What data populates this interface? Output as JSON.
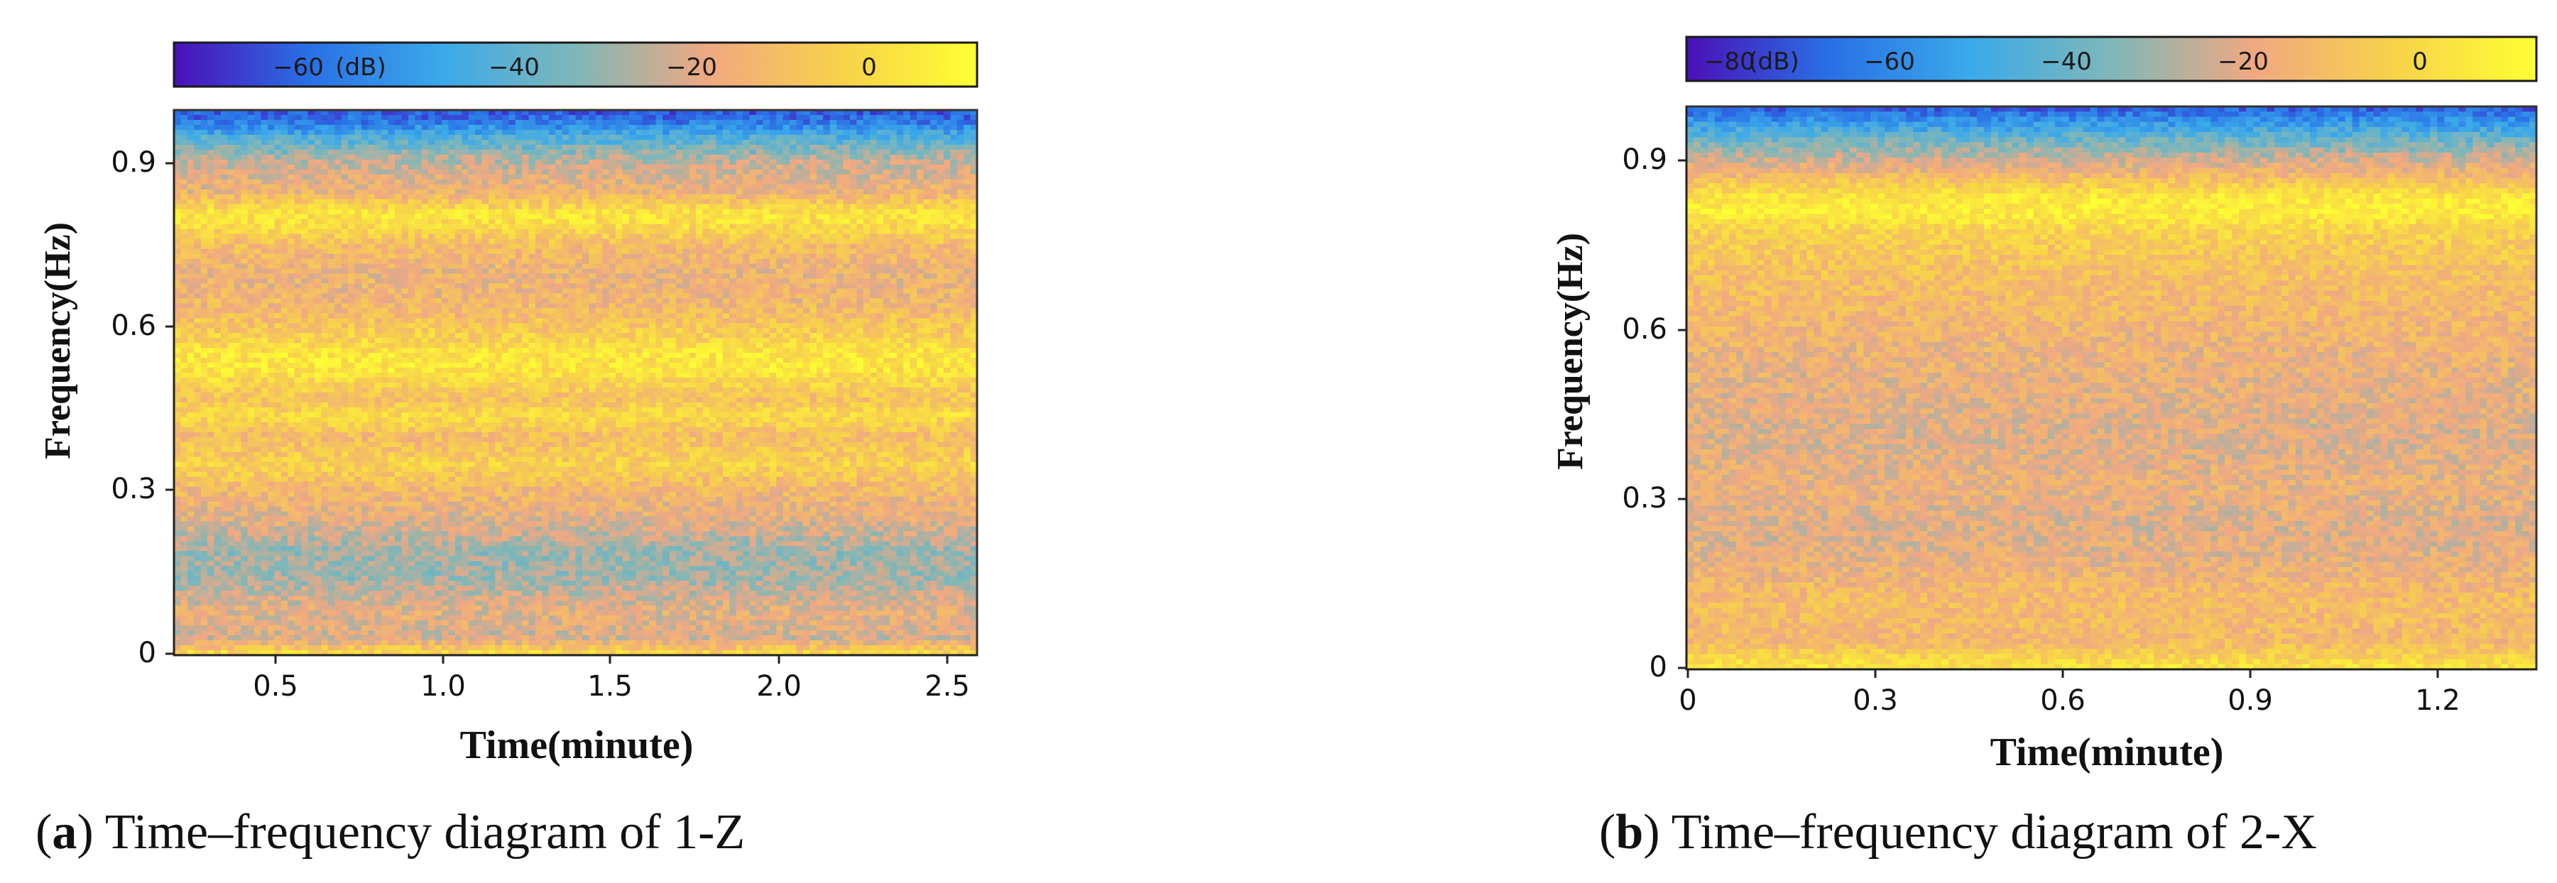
{
  "panels": [
    {
      "id": "a",
      "caption_letter": "a",
      "caption_text": "Time–frequency diagram of 1-Z",
      "colorbar": {
        "unit": "(dB)",
        "range": [
          -75,
          15
        ],
        "ticks": [
          -60,
          -40,
          -20,
          0
        ],
        "tick_labels": [
          "−60",
          "−40",
          "−20",
          "0"
        ],
        "colors": [
          "#4b0fb8",
          "#2a6fe6",
          "#3aa9ea",
          "#7fb7b8",
          "#f0a882",
          "#f7d24a",
          "#ffff33"
        ]
      }
    },
    {
      "id": "b",
      "caption_letter": "b",
      "caption_text": "Time–frequency diagram of 2-X",
      "colorbar": {
        "unit": "(dB)",
        "range": [
          -84,
          12
        ],
        "ticks": [
          -80,
          -60,
          -40,
          -20,
          0
        ],
        "tick_labels": [
          "−80",
          "−60",
          "−40",
          "−20",
          "0"
        ],
        "colors": [
          "#4b0fb8",
          "#2a6fe6",
          "#3aa9ea",
          "#7fb7b8",
          "#f0a882",
          "#f7d24a",
          "#ffff33"
        ]
      }
    }
  ],
  "chart_data": [
    {
      "type": "heatmap",
      "title": "",
      "xlabel": "Time(minute)",
      "ylabel": "Frequency(Hz)",
      "xlim": [
        0.2,
        2.57
      ],
      "ylim": [
        0,
        1.0
      ],
      "x_ticks": [
        0.5,
        1.0,
        1.5,
        2.0,
        2.5
      ],
      "x_tick_labels": [
        "0.5",
        "1.0",
        "1.5",
        "2.0",
        "2.5"
      ],
      "y_ticks": [
        0,
        0.3,
        0.6,
        0.9
      ],
      "y_tick_labels": [
        "0",
        "0.3",
        "0.6",
        "0.9"
      ],
      "colorbar_label": "(dB)",
      "frequency_profile_db": [
        {
          "f": 0.0,
          "db": 5
        },
        {
          "f": 0.03,
          "db": -18
        },
        {
          "f": 0.08,
          "db": -15
        },
        {
          "f": 0.14,
          "db": -25
        },
        {
          "f": 0.19,
          "db": -26
        },
        {
          "f": 0.24,
          "db": -17
        },
        {
          "f": 0.3,
          "db": -10
        },
        {
          "f": 0.35,
          "db": 0
        },
        {
          "f": 0.4,
          "db": -8
        },
        {
          "f": 0.44,
          "db": 3
        },
        {
          "f": 0.47,
          "db": -6
        },
        {
          "f": 0.52,
          "db": 6
        },
        {
          "f": 0.55,
          "db": 7
        },
        {
          "f": 0.58,
          "db": 0
        },
        {
          "f": 0.64,
          "db": -10
        },
        {
          "f": 0.7,
          "db": -13
        },
        {
          "f": 0.75,
          "db": -8
        },
        {
          "f": 0.79,
          "db": 4
        },
        {
          "f": 0.81,
          "db": 6
        },
        {
          "f": 0.85,
          "db": -12
        },
        {
          "f": 0.91,
          "db": -22
        },
        {
          "f": 0.95,
          "db": -40
        },
        {
          "f": 0.98,
          "db": -58
        },
        {
          "f": 1.0,
          "db": -64
        }
      ]
    },
    {
      "type": "heatmap",
      "title": "",
      "xlabel": "Time(minute)",
      "ylabel": "Frequency(Hz)",
      "xlim": [
        0,
        1.37
      ],
      "ylim": [
        0,
        1.0
      ],
      "x_ticks": [
        0,
        0.3,
        0.6,
        0.9,
        1.2
      ],
      "x_tick_labels": [
        "0",
        "0.3",
        "0.6",
        "0.9",
        "1.2"
      ],
      "y_ticks": [
        0,
        0.3,
        0.6,
        0.9
      ],
      "y_tick_labels": [
        "0",
        "0.3",
        "0.6",
        "0.9"
      ],
      "colorbar_label": "(dB)",
      "frequency_profile_db": [
        {
          "f": 0.0,
          "db": 4
        },
        {
          "f": 0.05,
          "db": -14
        },
        {
          "f": 0.12,
          "db": -12
        },
        {
          "f": 0.2,
          "db": -20
        },
        {
          "f": 0.26,
          "db": -22
        },
        {
          "f": 0.33,
          "db": -18
        },
        {
          "f": 0.4,
          "db": -22
        },
        {
          "f": 0.48,
          "db": -20
        },
        {
          "f": 0.55,
          "db": -18
        },
        {
          "f": 0.62,
          "db": -15
        },
        {
          "f": 0.68,
          "db": -12
        },
        {
          "f": 0.74,
          "db": -8
        },
        {
          "f": 0.78,
          "db": -4
        },
        {
          "f": 0.81,
          "db": 6
        },
        {
          "f": 0.84,
          "db": 3
        },
        {
          "f": 0.88,
          "db": -15
        },
        {
          "f": 0.92,
          "db": -30
        },
        {
          "f": 0.96,
          "db": -50
        },
        {
          "f": 1.0,
          "db": -72
        }
      ]
    }
  ]
}
